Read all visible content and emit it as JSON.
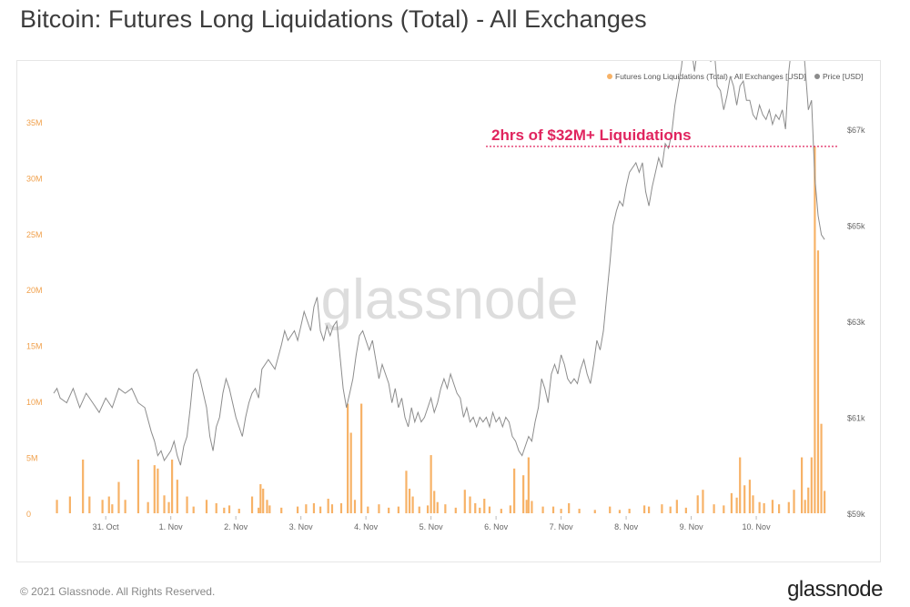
{
  "title": "Bitcoin: Futures Long Liquidations (Total) - All Exchanges",
  "footer": {
    "copyright": "© 2021 Glassnode. All Rights Reserved.",
    "brand": "glassnode"
  },
  "watermark": "glassnode",
  "colors": {
    "liquidations": "#f7b267",
    "liquidations_label": "#f0a04b",
    "price": "#8c8c8c",
    "annotation": "#e0245e",
    "axis_text": "#666666"
  },
  "chart_data": {
    "type": "bar+line",
    "legend": [
      {
        "name": "Futures Long Liquidations (Total) - All Exchanges [USD]",
        "color": "#f7b267"
      },
      {
        "name": "Price [USD]",
        "color": "#8c8c8c"
      }
    ],
    "legend_position": "top-right",
    "grid": false,
    "x_ticks": [
      "31. Oct",
      "1. Nov",
      "2. Nov",
      "3. Nov",
      "4. Nov",
      "5. Nov",
      "6. Nov",
      "7. Nov",
      "8. Nov",
      "9. Nov",
      "10. Nov"
    ],
    "x_range_days": [
      -0.8,
      11.3
    ],
    "y_left": {
      "label": "",
      "ticks": [
        "0",
        "5M",
        "10M",
        "15M",
        "20M",
        "25M",
        "30M",
        "35M"
      ],
      "range": [
        0,
        38000000
      ]
    },
    "y_right": {
      "label": "",
      "ticks": [
        "$59k",
        "$61k",
        "$63k",
        "$65k",
        "$67k"
      ],
      "range": [
        59000,
        67850
      ]
    },
    "annotation": {
      "text": "2hrs of $32M+ Liquidations",
      "value_usd": 32800000
    },
    "liquidation_bars": [
      [
        -0.75,
        1.2
      ],
      [
        -0.55,
        1.5
      ],
      [
        -0.35,
        4.8
      ],
      [
        -0.25,
        1.5
      ],
      [
        -0.05,
        1.2
      ],
      [
        0.05,
        1.5
      ],
      [
        0.1,
        0.8
      ],
      [
        0.2,
        2.8
      ],
      [
        0.3,
        1.2
      ],
      [
        0.5,
        4.8
      ],
      [
        0.65,
        1.0
      ],
      [
        0.75,
        4.3
      ],
      [
        0.8,
        4.0
      ],
      [
        0.9,
        1.6
      ],
      [
        0.97,
        1.0
      ],
      [
        1.02,
        4.8
      ],
      [
        1.1,
        3.0
      ],
      [
        1.25,
        1.5
      ],
      [
        1.35,
        0.6
      ],
      [
        1.55,
        1.2
      ],
      [
        1.7,
        0.9
      ],
      [
        1.82,
        0.5
      ],
      [
        1.9,
        0.7
      ],
      [
        2.05,
        0.4
      ],
      [
        2.25,
        1.5
      ],
      [
        2.35,
        0.5
      ],
      [
        2.38,
        2.6
      ],
      [
        2.42,
        2.2
      ],
      [
        2.48,
        1.2
      ],
      [
        2.52,
        0.7
      ],
      [
        2.7,
        0.5
      ],
      [
        2.95,
        0.6
      ],
      [
        3.08,
        0.8
      ],
      [
        3.2,
        0.9
      ],
      [
        3.3,
        0.6
      ],
      [
        3.42,
        1.3
      ],
      [
        3.48,
        0.8
      ],
      [
        3.62,
        0.9
      ],
      [
        3.72,
        9.8
      ],
      [
        3.77,
        7.2
      ],
      [
        3.83,
        1.2
      ],
      [
        3.93,
        9.8
      ],
      [
        4.03,
        0.6
      ],
      [
        4.2,
        0.8
      ],
      [
        4.35,
        0.5
      ],
      [
        4.5,
        0.6
      ],
      [
        4.62,
        3.8
      ],
      [
        4.67,
        2.2
      ],
      [
        4.72,
        1.5
      ],
      [
        4.82,
        0.6
      ],
      [
        4.95,
        0.7
      ],
      [
        5.0,
        5.2
      ],
      [
        5.05,
        2.0
      ],
      [
        5.1,
        1.0
      ],
      [
        5.22,
        0.8
      ],
      [
        5.38,
        0.5
      ],
      [
        5.52,
        2.1
      ],
      [
        5.6,
        1.5
      ],
      [
        5.68,
        0.9
      ],
      [
        5.75,
        0.5
      ],
      [
        5.82,
        1.3
      ],
      [
        5.9,
        0.6
      ],
      [
        6.08,
        0.4
      ],
      [
        6.22,
        0.7
      ],
      [
        6.28,
        4.0
      ],
      [
        6.42,
        3.4
      ],
      [
        6.47,
        1.2
      ],
      [
        6.5,
        5.0
      ],
      [
        6.55,
        1.1
      ],
      [
        6.72,
        0.6
      ],
      [
        6.88,
        0.6
      ],
      [
        7.0,
        0.4
      ],
      [
        7.12,
        0.9
      ],
      [
        7.28,
        0.4
      ],
      [
        7.52,
        0.3
      ],
      [
        7.75,
        0.6
      ],
      [
        7.9,
        0.3
      ],
      [
        8.05,
        0.4
      ],
      [
        8.28,
        0.7
      ],
      [
        8.35,
        0.6
      ],
      [
        8.55,
        0.8
      ],
      [
        8.68,
        0.6
      ],
      [
        8.78,
        1.2
      ],
      [
        8.92,
        0.5
      ],
      [
        9.1,
        1.6
      ],
      [
        9.18,
        2.1
      ],
      [
        9.35,
        0.8
      ],
      [
        9.5,
        0.7
      ],
      [
        9.62,
        1.8
      ],
      [
        9.7,
        1.4
      ],
      [
        9.75,
        5.0
      ],
      [
        9.82,
        2.5
      ],
      [
        9.9,
        3.0
      ],
      [
        9.95,
        1.6
      ],
      [
        10.05,
        1.0
      ],
      [
        10.12,
        0.9
      ],
      [
        10.25,
        1.2
      ],
      [
        10.35,
        0.8
      ],
      [
        10.5,
        1.0
      ],
      [
        10.58,
        2.1
      ],
      [
        10.7,
        5.0
      ],
      [
        10.75,
        1.2
      ],
      [
        10.8,
        2.3
      ],
      [
        10.85,
        5.0
      ],
      [
        10.9,
        32.8
      ],
      [
        10.95,
        23.5
      ],
      [
        11.0,
        8.0
      ],
      [
        11.05,
        2.0
      ]
    ],
    "price_series": [
      [
        -0.8,
        61.5
      ],
      [
        -0.75,
        61.6
      ],
      [
        -0.7,
        61.4
      ],
      [
        -0.6,
        61.3
      ],
      [
        -0.5,
        61.6
      ],
      [
        -0.4,
        61.2
      ],
      [
        -0.3,
        61.5
      ],
      [
        -0.2,
        61.3
      ],
      [
        -0.1,
        61.1
      ],
      [
        0.0,
        61.4
      ],
      [
        0.1,
        61.2
      ],
      [
        0.2,
        61.6
      ],
      [
        0.3,
        61.5
      ],
      [
        0.4,
        61.6
      ],
      [
        0.5,
        61.3
      ],
      [
        0.6,
        61.2
      ],
      [
        0.7,
        60.7
      ],
      [
        0.75,
        60.5
      ],
      [
        0.8,
        60.2
      ],
      [
        0.85,
        60.3
      ],
      [
        0.9,
        60.1
      ],
      [
        1.0,
        60.3
      ],
      [
        1.05,
        60.5
      ],
      [
        1.1,
        60.2
      ],
      [
        1.15,
        60.0
      ],
      [
        1.2,
        60.4
      ],
      [
        1.25,
        60.6
      ],
      [
        1.3,
        61.2
      ],
      [
        1.35,
        61.9
      ],
      [
        1.4,
        62.0
      ],
      [
        1.45,
        61.8
      ],
      [
        1.5,
        61.5
      ],
      [
        1.55,
        61.2
      ],
      [
        1.6,
        60.6
      ],
      [
        1.65,
        60.3
      ],
      [
        1.7,
        60.8
      ],
      [
        1.75,
        61.0
      ],
      [
        1.8,
        61.5
      ],
      [
        1.85,
        61.8
      ],
      [
        1.9,
        61.6
      ],
      [
        1.95,
        61.3
      ],
      [
        2.0,
        61.0
      ],
      [
        2.05,
        60.8
      ],
      [
        2.1,
        60.6
      ],
      [
        2.15,
        61.0
      ],
      [
        2.2,
        61.3
      ],
      [
        2.25,
        61.5
      ],
      [
        2.3,
        61.6
      ],
      [
        2.35,
        61.4
      ],
      [
        2.4,
        62.0
      ],
      [
        2.5,
        62.2
      ],
      [
        2.6,
        62.0
      ],
      [
        2.7,
        62.5
      ],
      [
        2.75,
        62.8
      ],
      [
        2.8,
        62.6
      ],
      [
        2.9,
        62.8
      ],
      [
        2.95,
        62.6
      ],
      [
        3.0,
        62.9
      ],
      [
        3.05,
        63.2
      ],
      [
        3.1,
        63.0
      ],
      [
        3.15,
        62.8
      ],
      [
        3.2,
        63.3
      ],
      [
        3.25,
        63.5
      ],
      [
        3.3,
        62.8
      ],
      [
        3.35,
        62.6
      ],
      [
        3.4,
        62.9
      ],
      [
        3.45,
        62.7
      ],
      [
        3.5,
        62.9
      ],
      [
        3.55,
        63.0
      ],
      [
        3.6,
        62.3
      ],
      [
        3.65,
        61.6
      ],
      [
        3.7,
        61.2
      ],
      [
        3.75,
        61.5
      ],
      [
        3.8,
        61.8
      ],
      [
        3.85,
        62.3
      ],
      [
        3.9,
        62.7
      ],
      [
        3.95,
        62.8
      ],
      [
        4.0,
        62.6
      ],
      [
        4.05,
        62.4
      ],
      [
        4.1,
        62.6
      ],
      [
        4.15,
        62.2
      ],
      [
        4.2,
        61.8
      ],
      [
        4.25,
        62.1
      ],
      [
        4.3,
        61.9
      ],
      [
        4.35,
        61.7
      ],
      [
        4.4,
        61.3
      ],
      [
        4.45,
        61.6
      ],
      [
        4.5,
        61.2
      ],
      [
        4.55,
        61.4
      ],
      [
        4.6,
        61.0
      ],
      [
        4.65,
        60.8
      ],
      [
        4.7,
        61.2
      ],
      [
        4.75,
        60.9
      ],
      [
        4.8,
        61.1
      ],
      [
        4.85,
        60.9
      ],
      [
        4.9,
        61.0
      ],
      [
        4.95,
        61.2
      ],
      [
        5.0,
        61.4
      ],
      [
        5.05,
        61.1
      ],
      [
        5.1,
        61.3
      ],
      [
        5.15,
        61.6
      ],
      [
        5.2,
        61.8
      ],
      [
        5.25,
        61.6
      ],
      [
        5.3,
        61.9
      ],
      [
        5.35,
        61.7
      ],
      [
        5.4,
        61.5
      ],
      [
        5.45,
        61.4
      ],
      [
        5.5,
        61.0
      ],
      [
        5.55,
        61.2
      ],
      [
        5.6,
        60.9
      ],
      [
        5.65,
        61.0
      ],
      [
        5.7,
        60.8
      ],
      [
        5.75,
        61.0
      ],
      [
        5.8,
        60.9
      ],
      [
        5.85,
        61.0
      ],
      [
        5.9,
        60.8
      ],
      [
        5.95,
        61.1
      ],
      [
        6.0,
        60.9
      ],
      [
        6.05,
        61.0
      ],
      [
        6.1,
        60.8
      ],
      [
        6.15,
        61.0
      ],
      [
        6.2,
        60.9
      ],
      [
        6.25,
        60.6
      ],
      [
        6.3,
        60.5
      ],
      [
        6.35,
        60.3
      ],
      [
        6.4,
        60.2
      ],
      [
        6.45,
        60.4
      ],
      [
        6.5,
        60.6
      ],
      [
        6.55,
        60.5
      ],
      [
        6.6,
        60.9
      ],
      [
        6.65,
        61.2
      ],
      [
        6.7,
        61.8
      ],
      [
        6.75,
        61.6
      ],
      [
        6.8,
        61.3
      ],
      [
        6.85,
        61.9
      ],
      [
        6.9,
        62.1
      ],
      [
        6.95,
        61.9
      ],
      [
        7.0,
        62.3
      ],
      [
        7.05,
        62.1
      ],
      [
        7.1,
        61.8
      ],
      [
        7.15,
        61.7
      ],
      [
        7.2,
        61.8
      ],
      [
        7.25,
        61.7
      ],
      [
        7.3,
        62.0
      ],
      [
        7.35,
        62.2
      ],
      [
        7.4,
        61.9
      ],
      [
        7.45,
        61.7
      ],
      [
        7.5,
        62.1
      ],
      [
        7.55,
        62.6
      ],
      [
        7.6,
        62.4
      ],
      [
        7.65,
        62.8
      ],
      [
        7.7,
        63.5
      ],
      [
        7.75,
        64.2
      ],
      [
        7.8,
        65.0
      ],
      [
        7.85,
        65.3
      ],
      [
        7.9,
        65.5
      ],
      [
        7.95,
        65.4
      ],
      [
        8.0,
        65.8
      ],
      [
        8.05,
        66.1
      ],
      [
        8.1,
        66.2
      ],
      [
        8.15,
        66.3
      ],
      [
        8.2,
        66.1
      ],
      [
        8.25,
        66.3
      ],
      [
        8.3,
        65.7
      ],
      [
        8.35,
        65.4
      ],
      [
        8.4,
        65.8
      ],
      [
        8.45,
        66.1
      ],
      [
        8.5,
        66.4
      ],
      [
        8.55,
        66.2
      ],
      [
        8.6,
        66.7
      ],
      [
        8.65,
        66.6
      ],
      [
        8.7,
        66.9
      ],
      [
        8.75,
        67.5
      ],
      [
        8.8,
        67.9
      ],
      [
        8.85,
        68.3
      ],
      [
        8.9,
        68.9
      ],
      [
        8.95,
        69.0
      ],
      [
        9.0,
        68.7
      ],
      [
        9.05,
        68.2
      ],
      [
        9.1,
        68.7
      ],
      [
        9.15,
        69.0
      ],
      [
        9.2,
        68.6
      ],
      [
        9.25,
        68.9
      ],
      [
        9.3,
        68.4
      ],
      [
        9.35,
        68.7
      ],
      [
        9.4,
        67.9
      ],
      [
        9.45,
        67.8
      ],
      [
        9.5,
        67.4
      ],
      [
        9.55,
        67.7
      ],
      [
        9.6,
        68.1
      ],
      [
        9.65,
        67.9
      ],
      [
        9.7,
        67.5
      ],
      [
        9.75,
        67.9
      ],
      [
        9.8,
        68.0
      ],
      [
        9.85,
        67.6
      ],
      [
        9.9,
        67.6
      ],
      [
        9.95,
        67.3
      ],
      [
        10.0,
        67.2
      ],
      [
        10.05,
        67.5
      ],
      [
        10.1,
        67.3
      ],
      [
        10.15,
        67.2
      ],
      [
        10.2,
        67.4
      ],
      [
        10.25,
        67.1
      ],
      [
        10.3,
        67.3
      ],
      [
        10.35,
        67.2
      ],
      [
        10.4,
        67.4
      ],
      [
        10.45,
        67.0
      ],
      [
        10.5,
        68.2
      ],
      [
        10.55,
        68.8
      ],
      [
        10.6,
        69.2
      ],
      [
        10.65,
        69.4
      ],
      [
        10.7,
        69.1
      ],
      [
        10.75,
        68.3
      ],
      [
        10.8,
        67.4
      ],
      [
        10.85,
        67.6
      ],
      [
        10.9,
        66.0
      ],
      [
        10.95,
        65.2
      ],
      [
        11.0,
        64.8
      ],
      [
        11.05,
        64.7
      ]
    ]
  }
}
